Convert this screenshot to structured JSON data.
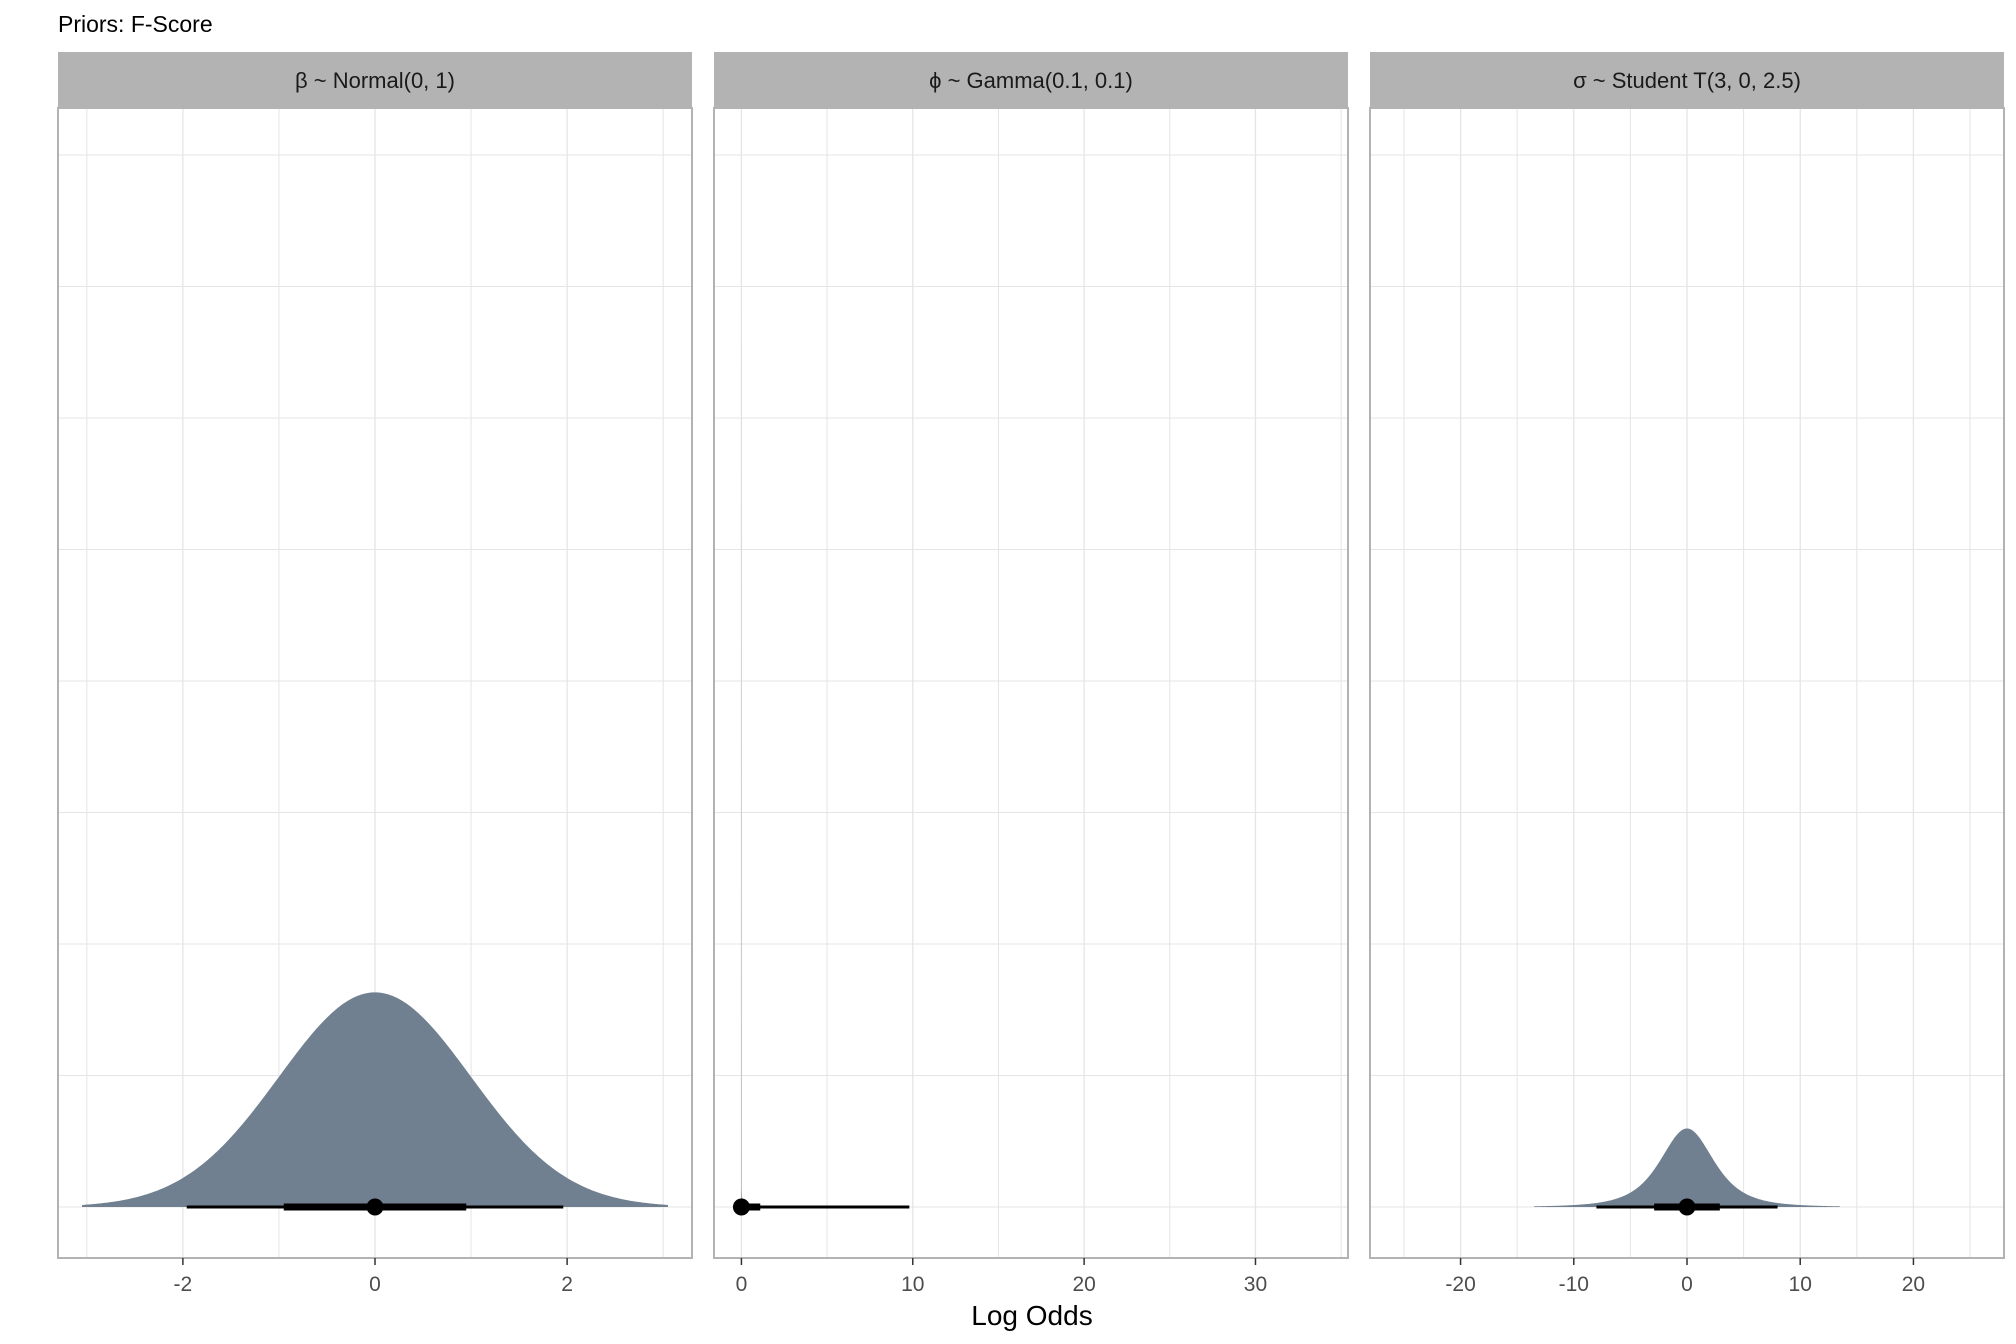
{
  "title": "Priors: F-Score",
  "xlabel": "Log Odds",
  "colors": {
    "fill": "#708090",
    "interval": "#000000",
    "strip": "#b3b3b3",
    "grid": "#e5e5e5",
    "border": "#b3b3b3"
  },
  "chart_data": [
    {
      "type": "area",
      "panel_label": "β ~ Normal(0, 1)",
      "distribution": "normal",
      "params": {
        "mean": 0,
        "sd": 1
      },
      "xlim": [
        -3.3,
        3.3
      ],
      "x_ticks": [
        -2,
        0,
        2
      ],
      "x_tick_labels": [
        "-2",
        "0",
        "2"
      ],
      "density_range": [
        -3.05,
        3.05
      ],
      "point": 0,
      "interval_66": [
        -0.95,
        0.95
      ],
      "interval_95": [
        -1.96,
        1.96
      ],
      "peak_height": 0.205
    },
    {
      "type": "area",
      "panel_label": "ϕ ~  Gamma(0.1, 0.1)",
      "distribution": "gamma",
      "params": {
        "shape": 0.1,
        "rate": 0.1
      },
      "xlim": [
        -1.6,
        35.4
      ],
      "x_ticks": [
        0,
        10,
        20,
        30
      ],
      "x_tick_labels": [
        "0",
        "10",
        "20",
        "30"
      ],
      "density_range": [
        0,
        17
      ],
      "point": 0,
      "interval_66": [
        0,
        1.1
      ],
      "interval_95": [
        0,
        9.8
      ],
      "peak_height": 0.9
    },
    {
      "type": "area",
      "panel_label": "σ ~ Student T(3, 0, 2.5)",
      "distribution": "student_t",
      "params": {
        "df": 3,
        "mu": 0,
        "sigma": 2.5
      },
      "xlim": [
        -28,
        28
      ],
      "x_ticks": [
        -20,
        -10,
        0,
        10,
        20
      ],
      "x_tick_labels": [
        "-20",
        "-10",
        "0",
        "10",
        "20"
      ],
      "density_range": [
        -13.5,
        13.5
      ],
      "point": 0,
      "interval_66": [
        -2.9,
        2.9
      ],
      "interval_95": [
        -8,
        8
      ],
      "peak_height": 0.075
    }
  ]
}
